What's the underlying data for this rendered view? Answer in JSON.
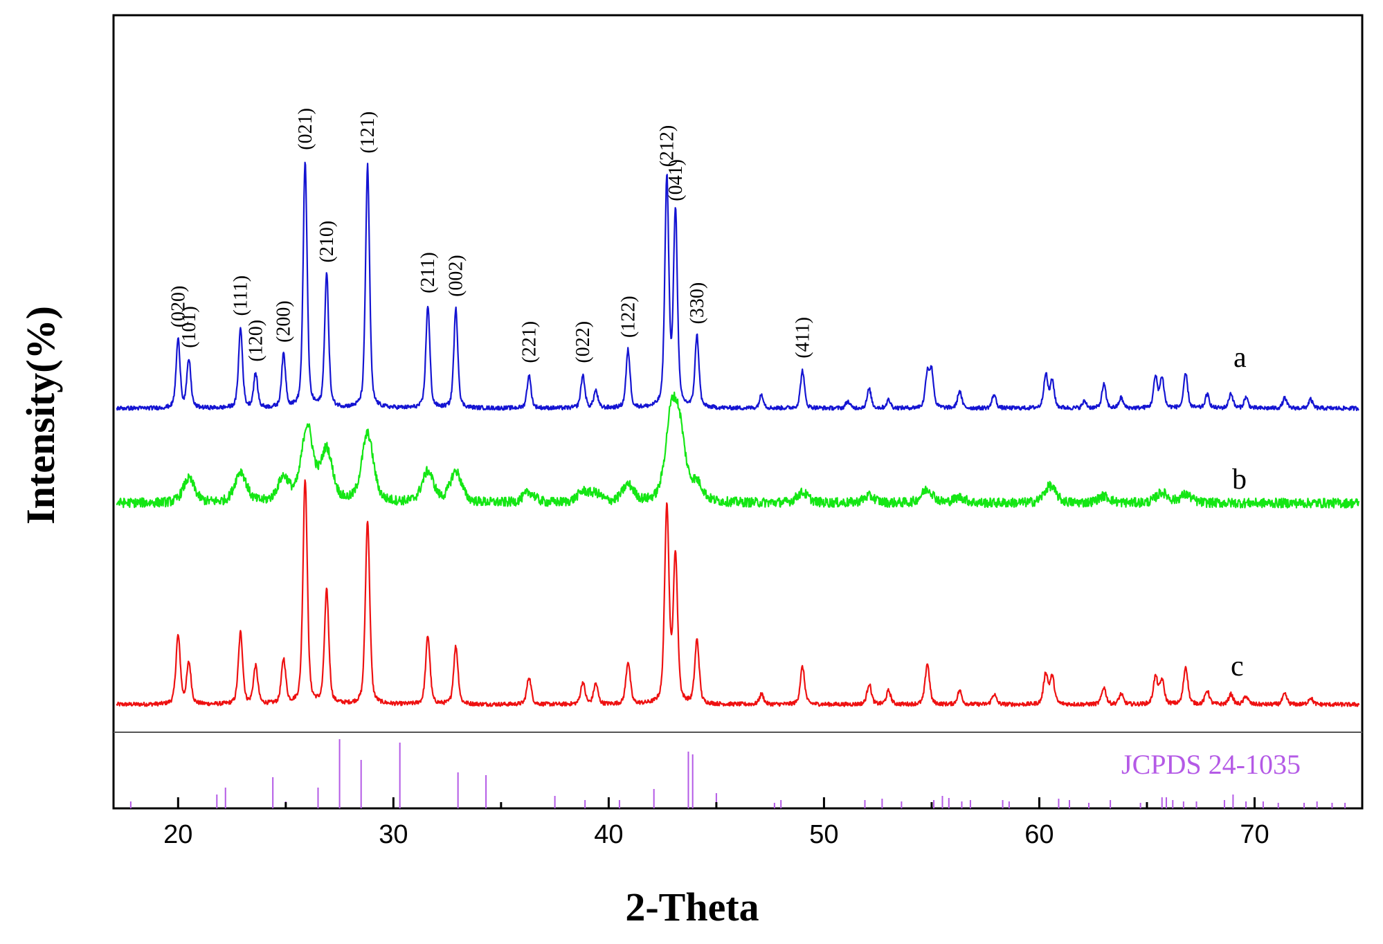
{
  "chart_data": {
    "type": "line",
    "title": "",
    "xlabel": "2-Theta",
    "ylabel": "Intensity(%)",
    "xlim": [
      17,
      75
    ],
    "xticks": [
      20,
      30,
      40,
      50,
      60,
      70
    ],
    "xtick_labels": [
      "20",
      "30",
      "40",
      "50",
      "60",
      "70"
    ],
    "y_axis_ticks_shown": false,
    "grid": false,
    "colors": {
      "a": "#1414d2",
      "b": "#14e614",
      "c": "#ee1111",
      "reference": "#b45ae6"
    },
    "peaks": [
      {
        "hkl": "(020)",
        "two_theta": 20.0
      },
      {
        "hkl": "(101)",
        "two_theta": 20.5
      },
      {
        "hkl": "(111)",
        "two_theta": 22.9
      },
      {
        "hkl": "(120)",
        "two_theta": 23.6
      },
      {
        "hkl": "(200)",
        "two_theta": 24.9
      },
      {
        "hkl": "(021)",
        "two_theta": 25.9
      },
      {
        "hkl": "(210)",
        "two_theta": 26.9
      },
      {
        "hkl": "(121)",
        "two_theta": 28.8
      },
      {
        "hkl": "(211)",
        "two_theta": 31.6
      },
      {
        "hkl": "(002)",
        "two_theta": 32.9
      },
      {
        "hkl": "(221)",
        "two_theta": 36.3
      },
      {
        "hkl": "(022)",
        "two_theta": 38.8
      },
      {
        "hkl": "(122)",
        "two_theta": 40.9
      },
      {
        "hkl": "(212)",
        "two_theta": 42.7
      },
      {
        "hkl": "(041)",
        "two_theta": 43.1
      },
      {
        "hkl": "(330)",
        "two_theta": 44.1
      },
      {
        "hkl": "(411)",
        "two_theta": 49.0
      }
    ],
    "series": [
      {
        "name": "a",
        "label": "a",
        "baseline": 0,
        "peaks": [
          [
            20.0,
            100
          ],
          [
            20.5,
            70
          ],
          [
            22.9,
            117
          ],
          [
            23.6,
            50
          ],
          [
            24.9,
            78
          ],
          [
            25.9,
            360
          ],
          [
            26.9,
            195
          ],
          [
            28.8,
            355
          ],
          [
            31.6,
            150
          ],
          [
            32.9,
            145
          ],
          [
            36.3,
            48
          ],
          [
            38.8,
            48
          ],
          [
            39.4,
            25
          ],
          [
            40.9,
            85
          ],
          [
            42.7,
            335
          ],
          [
            43.1,
            285
          ],
          [
            44.1,
            105
          ],
          [
            47.1,
            20
          ],
          [
            49.0,
            55
          ],
          [
            51.1,
            10
          ],
          [
            52.1,
            28
          ],
          [
            53.0,
            12
          ],
          [
            54.8,
            50
          ],
          [
            55.0,
            52
          ],
          [
            56.3,
            25
          ],
          [
            57.9,
            20
          ],
          [
            60.3,
            50
          ],
          [
            60.6,
            40
          ],
          [
            62.1,
            10
          ],
          [
            63.0,
            35
          ],
          [
            63.8,
            15
          ],
          [
            65.4,
            45
          ],
          [
            65.7,
            45
          ],
          [
            66.8,
            50
          ],
          [
            67.8,
            20
          ],
          [
            68.9,
            22
          ],
          [
            69.6,
            16
          ],
          [
            71.4,
            15
          ],
          [
            72.6,
            13
          ]
        ]
      },
      {
        "name": "b",
        "label": "b",
        "baseline": 0,
        "peaks": [
          [
            20.5,
            35
          ],
          [
            22.9,
            45
          ],
          [
            24.9,
            35
          ],
          [
            26.0,
            110
          ],
          [
            26.9,
            75
          ],
          [
            28.8,
            100
          ],
          [
            31.6,
            45
          ],
          [
            32.9,
            45
          ],
          [
            36.3,
            15
          ],
          [
            38.8,
            15
          ],
          [
            39.4,
            12
          ],
          [
            40.9,
            25
          ],
          [
            42.9,
            115
          ],
          [
            43.3,
            90
          ],
          [
            44.1,
            25
          ],
          [
            49.0,
            15
          ],
          [
            52.1,
            10
          ],
          [
            54.8,
            20
          ],
          [
            56.3,
            8
          ],
          [
            60.5,
            25
          ],
          [
            63.0,
            10
          ],
          [
            65.7,
            15
          ],
          [
            66.8,
            12
          ]
        ]
      },
      {
        "name": "c",
        "label": "c",
        "baseline": 0,
        "peaks": [
          [
            20.0,
            100
          ],
          [
            20.5,
            60
          ],
          [
            22.9,
            105
          ],
          [
            23.6,
            55
          ],
          [
            24.9,
            65
          ],
          [
            25.9,
            330
          ],
          [
            26.9,
            165
          ],
          [
            28.8,
            270
          ],
          [
            31.6,
            100
          ],
          [
            32.9,
            85
          ],
          [
            36.3,
            40
          ],
          [
            38.8,
            32
          ],
          [
            39.4,
            30
          ],
          [
            40.9,
            62
          ],
          [
            42.7,
            290
          ],
          [
            43.1,
            215
          ],
          [
            44.1,
            93
          ],
          [
            47.1,
            15
          ],
          [
            49.0,
            55
          ],
          [
            52.1,
            30
          ],
          [
            53.0,
            20
          ],
          [
            54.8,
            60
          ],
          [
            56.3,
            20
          ],
          [
            57.9,
            15
          ],
          [
            60.3,
            45
          ],
          [
            60.6,
            40
          ],
          [
            63.0,
            25
          ],
          [
            63.8,
            15
          ],
          [
            65.4,
            40
          ],
          [
            65.7,
            35
          ],
          [
            66.8,
            55
          ],
          [
            67.8,
            20
          ],
          [
            68.9,
            15
          ],
          [
            69.6,
            12
          ],
          [
            71.4,
            15
          ],
          [
            72.6,
            10
          ]
        ]
      }
    ],
    "reference": {
      "label": "JCPDS 24-1035",
      "lines": [
        [
          17.8,
          10
        ],
        [
          21.8,
          20
        ],
        [
          22.2,
          30
        ],
        [
          24.4,
          45
        ],
        [
          25.0,
          10
        ],
        [
          26.5,
          30
        ],
        [
          27.5,
          100
        ],
        [
          28.5,
          70
        ],
        [
          30.3,
          95
        ],
        [
          33.0,
          52
        ],
        [
          34.3,
          48
        ],
        [
          37.5,
          18
        ],
        [
          38.9,
          12
        ],
        [
          40.5,
          12
        ],
        [
          42.1,
          28
        ],
        [
          43.7,
          82
        ],
        [
          43.9,
          78
        ],
        [
          45.0,
          22
        ],
        [
          47.7,
          8
        ],
        [
          48.0,
          12
        ],
        [
          51.9,
          12
        ],
        [
          52.7,
          14
        ],
        [
          53.6,
          10
        ],
        [
          55.1,
          12
        ],
        [
          55.5,
          18
        ],
        [
          55.8,
          15
        ],
        [
          56.4,
          10
        ],
        [
          56.8,
          12
        ],
        [
          58.3,
          12
        ],
        [
          58.6,
          10
        ],
        [
          60.9,
          14
        ],
        [
          61.4,
          12
        ],
        [
          62.3,
          8
        ],
        [
          63.3,
          12
        ],
        [
          64.7,
          8
        ],
        [
          65.7,
          16
        ],
        [
          65.9,
          16
        ],
        [
          66.2,
          12
        ],
        [
          66.7,
          10
        ],
        [
          67.3,
          10
        ],
        [
          68.6,
          12
        ],
        [
          69.0,
          20
        ],
        [
          69.6,
          10
        ],
        [
          70.4,
          10
        ],
        [
          71.1,
          8
        ],
        [
          72.3,
          8
        ],
        [
          72.9,
          10
        ],
        [
          73.6,
          8
        ],
        [
          74.2,
          8
        ]
      ]
    }
  }
}
